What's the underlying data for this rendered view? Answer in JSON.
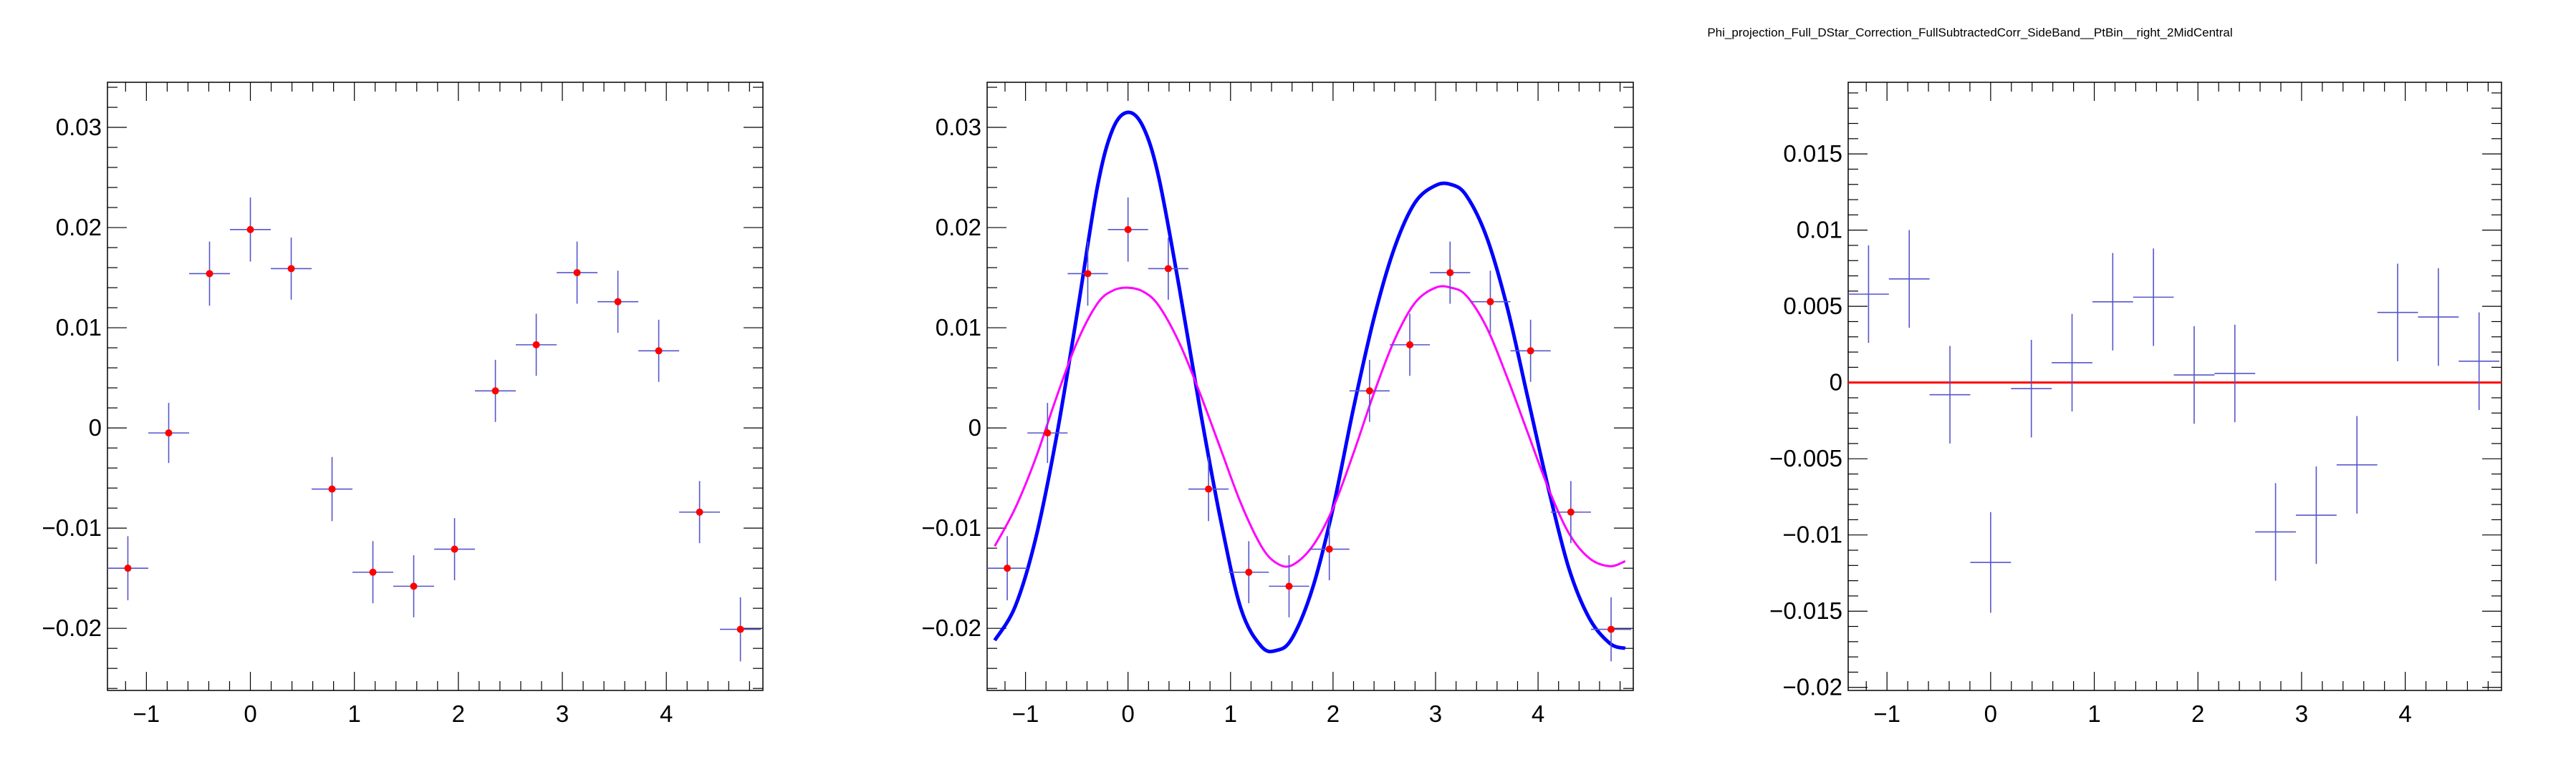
{
  "page": {
    "title": "Phi_projection_Full_DStar_Correction_FullSubtractedCorr_SideBand__PtBin__right_2MidCentral"
  },
  "colors": {
    "marker": "#ff0000",
    "error_bar": "#5555cc",
    "fit_blue": "#0000ff",
    "fit_magenta": "#ff00ff",
    "zero_line": "#ff0000",
    "frame": "#000000"
  },
  "chart_data": [
    {
      "type": "scatter",
      "title": "",
      "xlabel": "",
      "ylabel": "",
      "xlim": [
        -1.3744,
        4.9288
      ],
      "ylim": [
        -0.0262,
        0.0345
      ],
      "x_ticks": [
        -1,
        0,
        1,
        2,
        3,
        4
      ],
      "x_tick_labels": [
        "−1",
        "0",
        "1",
        "2",
        "3",
        "4"
      ],
      "y_ticks": [
        -0.02,
        -0.01,
        0,
        0.01,
        0.02,
        0.03
      ],
      "y_tick_labels": [
        "−0.02",
        "−0.01",
        "0",
        "0.01",
        "0.02",
        "0.03"
      ],
      "grid": false,
      "series": [
        {
          "x": [
            -1.1781,
            -0.7854,
            -0.3927,
            0.0,
            0.3927,
            0.7854,
            1.1781,
            1.5708,
            1.9635,
            2.3562,
            2.7489,
            3.1416,
            3.5343,
            3.927,
            4.3197,
            4.7124
          ],
          "y": [
            -0.014,
            -0.0005,
            0.0154,
            0.0198,
            0.0159,
            -0.0061,
            -0.0144,
            -0.0158,
            -0.0121,
            0.0037,
            0.0083,
            0.0155,
            0.0126,
            0.0077,
            -0.0084,
            -0.0201
          ],
          "y_err": [
            0.0032,
            0.003,
            0.0032,
            0.0032,
            0.0031,
            0.0032,
            0.0031,
            0.0031,
            0.0031,
            0.0031,
            0.0031,
            0.0031,
            0.0031,
            0.0031,
            0.0031,
            0.0032
          ],
          "x_err": 0.19635
        }
      ]
    },
    {
      "type": "scatter",
      "title": "",
      "xlabel": "",
      "ylabel": "",
      "xlim": [
        -1.3744,
        4.9288
      ],
      "ylim": [
        -0.0262,
        0.0345
      ],
      "x_ticks": [
        -1,
        0,
        1,
        2,
        3,
        4
      ],
      "x_tick_labels": [
        "−1",
        "0",
        "1",
        "2",
        "3",
        "4"
      ],
      "y_ticks": [
        -0.02,
        -0.01,
        0,
        0.01,
        0.02,
        0.03
      ],
      "y_tick_labels": [
        "−0.02",
        "−0.01",
        "0",
        "0.01",
        "0.02",
        "0.03"
      ],
      "grid": false,
      "series": [
        {
          "x": [
            -1.1781,
            -0.7854,
            -0.3927,
            0.0,
            0.3927,
            0.7854,
            1.1781,
            1.5708,
            1.9635,
            2.3562,
            2.7489,
            3.1416,
            3.5343,
            3.927,
            4.3197,
            4.7124
          ],
          "y": [
            -0.014,
            -0.0005,
            0.0154,
            0.0198,
            0.0159,
            -0.0061,
            -0.0144,
            -0.0158,
            -0.0121,
            0.0037,
            0.0083,
            0.0155,
            0.0126,
            0.0077,
            -0.0084,
            -0.0201
          ],
          "y_err": [
            0.0032,
            0.003,
            0.0032,
            0.0032,
            0.0031,
            0.0032,
            0.0031,
            0.0031,
            0.0031,
            0.0031,
            0.0031,
            0.0031,
            0.0031,
            0.0031,
            0.0031,
            0.0032
          ],
          "x_err": 0.19635
        }
      ],
      "curves": [
        {
          "color": "blue",
          "x": [
            -1.3,
            -1.1,
            -0.9,
            -0.7,
            -0.5,
            -0.3,
            -0.15,
            0.0,
            0.15,
            0.3,
            0.5,
            0.7,
            0.9,
            1.1,
            1.3,
            1.45,
            1.6,
            1.8,
            2.0,
            2.2,
            2.4,
            2.6,
            2.8,
            3.0,
            3.15,
            3.3,
            3.5,
            3.7,
            3.9,
            4.1,
            4.3,
            4.5,
            4.7,
            4.85
          ],
          "y": [
            -0.0212,
            -0.0178,
            -0.011,
            -0.001,
            0.0112,
            0.024,
            0.0298,
            0.0315,
            0.03,
            0.025,
            0.014,
            0.002,
            -0.009,
            -0.018,
            -0.0218,
            -0.0222,
            -0.021,
            -0.016,
            -0.008,
            0.002,
            0.011,
            0.018,
            0.0225,
            0.0242,
            0.0243,
            0.0232,
            0.019,
            0.012,
            0.003,
            -0.006,
            -0.014,
            -0.019,
            -0.0215,
            -0.022
          ]
        },
        {
          "color": "magenta",
          "x": [
            -1.3,
            -1.1,
            -0.9,
            -0.7,
            -0.5,
            -0.3,
            -0.15,
            0.0,
            0.15,
            0.3,
            0.5,
            0.7,
            0.9,
            1.1,
            1.3,
            1.45,
            1.6,
            1.8,
            2.0,
            2.2,
            2.4,
            2.6,
            2.8,
            3.0,
            3.15,
            3.3,
            3.5,
            3.7,
            3.9,
            4.1,
            4.3,
            4.5,
            4.7,
            4.85
          ],
          "y": [
            -0.0118,
            -0.008,
            -0.003,
            0.003,
            0.0085,
            0.0124,
            0.0137,
            0.014,
            0.0136,
            0.0122,
            0.0085,
            0.0035,
            -0.002,
            -0.0075,
            -0.0118,
            -0.0135,
            -0.0137,
            -0.0118,
            -0.008,
            -0.0025,
            0.0035,
            0.0088,
            0.0125,
            0.014,
            0.014,
            0.0132,
            0.01,
            0.005,
            -0.0005,
            -0.006,
            -0.0105,
            -0.013,
            -0.0138,
            -0.0133
          ]
        }
      ]
    },
    {
      "type": "scatter",
      "title": "",
      "xlabel": "",
      "ylabel": "",
      "xlim": [
        -1.3744,
        4.9288
      ],
      "ylim": [
        -0.0202,
        0.0197
      ],
      "x_ticks": [
        -1,
        0,
        1,
        2,
        3,
        4
      ],
      "x_tick_labels": [
        "−1",
        "0",
        "1",
        "2",
        "3",
        "4"
      ],
      "y_ticks": [
        -0.02,
        -0.015,
        -0.01,
        -0.005,
        0,
        0.005,
        0.01,
        0.015
      ],
      "y_tick_labels": [
        "−0.02",
        "−0.015",
        "−0.01",
        "−0.005",
        "0",
        "0.005",
        "0.01",
        "0.015"
      ],
      "grid": false,
      "reference_line_y": 0,
      "series": [
        {
          "markers": false,
          "x": [
            -1.1781,
            -0.7854,
            -0.3927,
            0.0,
            0.3927,
            0.7854,
            1.1781,
            1.5708,
            1.9635,
            2.3562,
            2.7489,
            3.1416,
            3.5343,
            3.927,
            4.3197,
            4.7124
          ],
          "y": [
            0.0058,
            0.0068,
            -0.0008,
            -0.0118,
            -0.0004,
            0.0013,
            0.0053,
            0.0056,
            0.0005,
            0.0006,
            -0.0098,
            -0.0087,
            -0.0054,
            0.0046,
            0.0043,
            0.0014
          ],
          "y_err": [
            0.0032,
            0.0032,
            0.0032,
            0.0033,
            0.0032,
            0.0032,
            0.0032,
            0.0032,
            0.0032,
            0.0032,
            0.0032,
            0.0032,
            0.0032,
            0.0032,
            0.0032,
            0.0032
          ],
          "x_err": 0.19635
        }
      ]
    }
  ]
}
